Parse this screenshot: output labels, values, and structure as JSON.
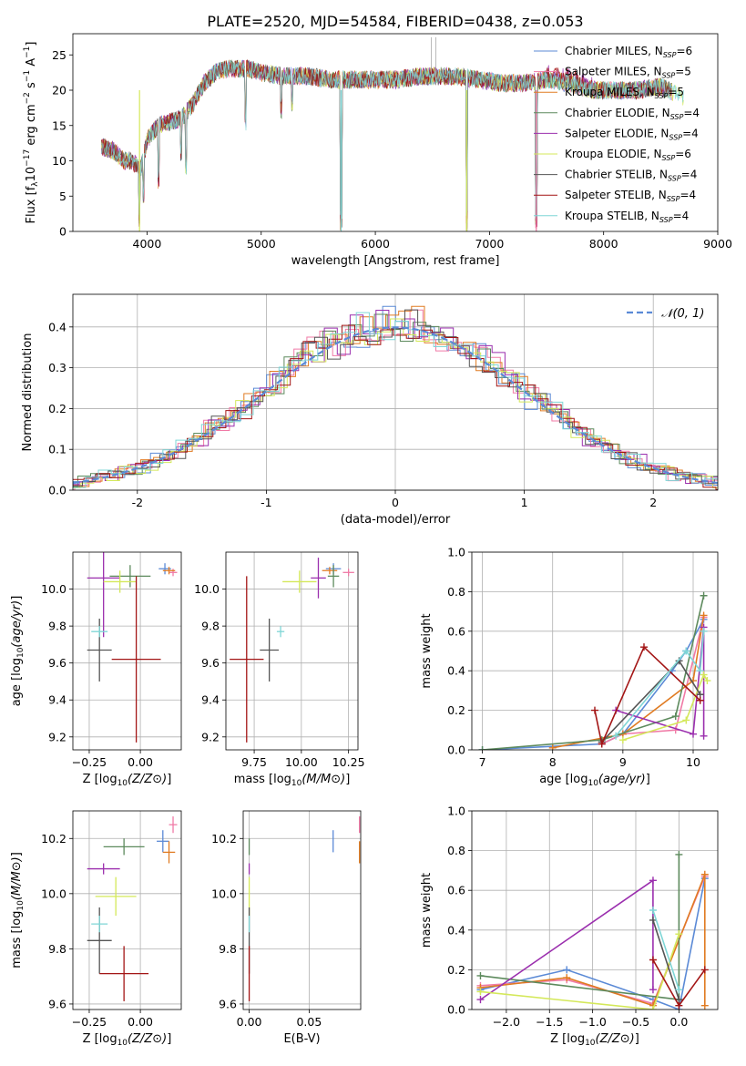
{
  "figure_title": "PLATE=2520, MJD=54584, FIBERID=0438, z=0.053",
  "colors": {
    "Chabrier MILES": "#5b8ad6",
    "Salpeter MILES": "#f07aa6",
    "Kroupa MILES": "#e07b22",
    "Chabrier ELODIE": "#5d8a5d",
    "Salpeter ELODIE": "#9b2fae",
    "Kroupa ELODIE": "#d4e85a",
    "Chabrier STELIB": "#555555",
    "Salpeter STELIB": "#a31515",
    "Kroupa STELIB": "#7fd6d6",
    "gauss": "#5b8ad6"
  },
  "chart_data": [
    {
      "id": "spectrum",
      "type": "line",
      "title": "PLATE=2520, MJD=54584, FIBERID=0438, z=0.053",
      "xlabel": "wavelength [Angstrom, rest frame]",
      "ylabel_parts": [
        "Flux [f",
        "λ",
        "10",
        "−17",
        " erg cm",
        "−2",
        " s",
        "−1",
        " A",
        "−1",
        "]"
      ],
      "xlim": [
        3350,
        9000
      ],
      "ylim": [
        0,
        28
      ],
      "xticks": [
        4000,
        5000,
        6000,
        7000,
        8000,
        9000
      ],
      "yticks": [
        0,
        5,
        10,
        15,
        20,
        25
      ],
      "grid": false,
      "legend_loc": "upper right",
      "legend": [
        {
          "name": "Chabrier MILES",
          "nssp": "6"
        },
        {
          "name": "Salpeter MILES",
          "nssp": "5"
        },
        {
          "name": "Kroupa MILES",
          "nssp": "5"
        },
        {
          "name": "Chabrier ELODIE",
          "nssp": "4"
        },
        {
          "name": "Salpeter ELODIE",
          "nssp": "4"
        },
        {
          "name": "Kroupa ELODIE",
          "nssp": "6"
        },
        {
          "name": "Chabrier STELIB",
          "nssp": "4"
        },
        {
          "name": "Salpeter STELIB",
          "nssp": "4"
        },
        {
          "name": "Kroupa STELIB",
          "nssp": "4"
        }
      ],
      "continuum": [
        [
          3600,
          12
        ],
        [
          3700,
          11.5
        ],
        [
          3800,
          10
        ],
        [
          3850,
          10
        ],
        [
          3950,
          9
        ],
        [
          4000,
          13
        ],
        [
          4100,
          15
        ],
        [
          4200,
          15.5
        ],
        [
          4300,
          16
        ],
        [
          4400,
          18
        ],
        [
          4500,
          21
        ],
        [
          4600,
          22.5
        ],
        [
          4700,
          23
        ],
        [
          4800,
          23
        ],
        [
          4900,
          23
        ],
        [
          5000,
          22.5
        ],
        [
          5200,
          22
        ],
        [
          5400,
          22
        ],
        [
          5600,
          21.5
        ],
        [
          5800,
          21.5
        ],
        [
          6000,
          21.5
        ],
        [
          6200,
          21.5
        ],
        [
          6400,
          22
        ],
        [
          6500,
          22
        ],
        [
          6700,
          22
        ],
        [
          6900,
          21.5
        ],
        [
          7100,
          21
        ],
        [
          7300,
          21
        ],
        [
          7500,
          21.5
        ],
        [
          7700,
          21
        ],
        [
          7900,
          20
        ],
        [
          8100,
          20
        ],
        [
          8300,
          20
        ],
        [
          8500,
          20.5
        ],
        [
          8700,
          19
        ]
      ],
      "lines_down": [
        [
          3934,
          0.5
        ],
        [
          3969,
          4
        ],
        [
          4102,
          6
        ],
        [
          4300,
          10
        ],
        [
          4340,
          8
        ],
        [
          4861,
          14
        ],
        [
          5175,
          16
        ],
        [
          5270,
          17
        ],
        [
          5700,
          0
        ],
        [
          6800,
          0
        ],
        [
          7410,
          0
        ]
      ],
      "lines_up": [
        [
          6490,
          27.5
        ],
        [
          6530,
          27.5
        ]
      ]
    },
    {
      "id": "residuals",
      "type": "bar",
      "xlabel": "(data-model)/error",
      "ylabel": "Normed distribution",
      "xlim": [
        -2.5,
        2.5
      ],
      "ylim": [
        0,
        0.48
      ],
      "xticks": [
        -2,
        -1,
        0,
        1,
        2
      ],
      "yticks": [
        0.0,
        0.1,
        0.2,
        0.3,
        0.4
      ],
      "grid": true,
      "legend_loc": "upper right",
      "legend": [
        {
          "name": "𝒩(0, 1)"
        }
      ],
      "bin_width": 0.1
    },
    {
      "id": "age_vs_Z",
      "type": "scatter",
      "xlabel": "Z [log10(Z/Z⊙)]",
      "ylabel": "age  [log10(age/yr)]",
      "xlim": [
        -0.33,
        0.2
      ],
      "ylim": [
        9.13,
        10.2
      ],
      "xticks": [
        -0.25,
        0.0
      ],
      "xticklabels": [
        "−0.25",
        "0.00"
      ],
      "yticks": [
        9.2,
        9.4,
        9.6,
        9.8,
        10.0
      ],
      "grid": true,
      "points": [
        {
          "model": "Chabrier MILES",
          "x": 0.12,
          "y": 10.11,
          "xerr": 0.03,
          "yerr": 0.03
        },
        {
          "model": "Salpeter MILES",
          "x": 0.16,
          "y": 10.09,
          "xerr": 0.02,
          "yerr": 0.02
        },
        {
          "model": "Kroupa MILES",
          "x": 0.14,
          "y": 10.1,
          "xerr": 0.03,
          "yerr": 0.02
        },
        {
          "model": "Chabrier ELODIE",
          "x": -0.05,
          "y": 10.07,
          "xerr": 0.1,
          "yerr": 0.06
        },
        {
          "model": "Salpeter ELODIE",
          "x": -0.18,
          "y": 10.06,
          "xerr": 0.08,
          "yerr": 0.32
        },
        {
          "model": "Kroupa ELODIE",
          "x": -0.1,
          "y": 10.04,
          "xerr": 0.08,
          "yerr": 0.06
        },
        {
          "model": "Chabrier STELIB",
          "x": -0.2,
          "y": 9.67,
          "xerr": 0.06,
          "yerr": 0.17
        },
        {
          "model": "Salpeter STELIB",
          "x": -0.02,
          "y": 9.62,
          "xerr": 0.12,
          "yerr": 0.45
        },
        {
          "model": "Kroupa STELIB",
          "x": -0.2,
          "y": 9.77,
          "xerr": 0.04,
          "yerr": 0.03
        }
      ]
    },
    {
      "id": "age_vs_mass",
      "type": "scatter",
      "xlabel": "mass [log10(M/M⊙)]",
      "ylabel": "",
      "xlim": [
        9.6,
        10.3
      ],
      "ylim": [
        9.13,
        10.2
      ],
      "xticks": [
        9.75,
        10.0,
        10.25
      ],
      "xticklabels": [
        "9.75",
        "10.00",
        "10.25"
      ],
      "yticks": [
        9.2,
        9.4,
        9.6,
        9.8,
        10.0
      ],
      "grid": true,
      "points": [
        {
          "model": "Chabrier MILES",
          "x": 10.17,
          "y": 10.11,
          "xerr": 0.04,
          "yerr": 0.03
        },
        {
          "model": "Salpeter MILES",
          "x": 10.25,
          "y": 10.09,
          "xerr": 0.03,
          "yerr": 0.02
        },
        {
          "model": "Kroupa MILES",
          "x": 10.15,
          "y": 10.1,
          "xerr": 0.04,
          "yerr": 0.02
        },
        {
          "model": "Chabrier ELODIE",
          "x": 10.17,
          "y": 10.07,
          "xerr": 0.03,
          "yerr": 0.06
        },
        {
          "model": "Salpeter ELODIE",
          "x": 10.09,
          "y": 10.06,
          "xerr": 0.04,
          "yerr": 0.11
        },
        {
          "model": "Kroupa ELODIE",
          "x": 9.99,
          "y": 10.04,
          "xerr": 0.09,
          "yerr": 0.06
        },
        {
          "model": "Chabrier STELIB",
          "x": 9.83,
          "y": 9.67,
          "xerr": 0.05,
          "yerr": 0.17
        },
        {
          "model": "Salpeter STELIB",
          "x": 9.71,
          "y": 9.62,
          "xerr": 0.09,
          "yerr": 0.45
        },
        {
          "model": "Kroupa STELIB",
          "x": 9.89,
          "y": 9.77,
          "xerr": 0.02,
          "yerr": 0.03
        }
      ]
    },
    {
      "id": "weight_vs_age",
      "type": "line",
      "xlabel": "age  [log10(age/yr)]",
      "ylabel": "mass weight",
      "xlim": [
        6.85,
        10.35
      ],
      "ylim": [
        0,
        1.0
      ],
      "xticks": [
        7,
        8,
        9,
        10
      ],
      "yticks": [
        0.0,
        0.2,
        0.4,
        0.6,
        0.8,
        1.0
      ],
      "grid": true,
      "series": [
        {
          "model": "Chabrier MILES",
          "points": [
            [
              7.0,
              0.0
            ],
            [
              8.7,
              0.03
            ],
            [
              9.0,
              0.08
            ],
            [
              9.7,
              0.4
            ],
            [
              9.9,
              0.5
            ],
            [
              10.15,
              0.66
            ]
          ]
        },
        {
          "model": "Salpeter MILES",
          "points": [
            [
              8.7,
              0.03
            ],
            [
              9.0,
              0.08
            ],
            [
              9.75,
              0.1
            ],
            [
              10.15,
              0.67
            ]
          ]
        },
        {
          "model": "Kroupa MILES",
          "points": [
            [
              8.0,
              0.01
            ],
            [
              9.0,
              0.08
            ],
            [
              10.0,
              0.35
            ],
            [
              10.15,
              0.68
            ]
          ]
        },
        {
          "model": "Chabrier ELODIE",
          "points": [
            [
              7.0,
              0.0
            ],
            [
              8.7,
              0.05
            ],
            [
              9.75,
              0.17
            ],
            [
              10.15,
              0.78
            ]
          ]
        },
        {
          "model": "Salpeter ELODIE",
          "points": [
            [
              8.9,
              0.2
            ],
            [
              10.0,
              0.08
            ],
            [
              10.15,
              0.62
            ],
            [
              10.15,
              0.07
            ]
          ]
        },
        {
          "model": "Kroupa ELODIE",
          "points": [
            [
              9.0,
              0.05
            ],
            [
              9.9,
              0.15
            ],
            [
              10.15,
              0.38
            ],
            [
              10.2,
              0.35
            ]
          ]
        },
        {
          "model": "Chabrier STELIB",
          "points": [
            [
              8.7,
              0.04
            ],
            [
              9.8,
              0.45
            ],
            [
              10.1,
              0.28
            ]
          ]
        },
        {
          "model": "Salpeter STELIB",
          "points": [
            [
              8.6,
              0.2
            ],
            [
              8.7,
              0.03
            ],
            [
              9.3,
              0.52
            ],
            [
              10.1,
              0.25
            ]
          ]
        },
        {
          "model": "Kroupa STELIB",
          "points": [
            [
              8.9,
              0.07
            ],
            [
              9.9,
              0.5
            ],
            [
              10.1,
              0.4
            ],
            [
              10.15,
              0.6
            ]
          ]
        }
      ]
    },
    {
      "id": "mass_vs_Z",
      "type": "scatter",
      "xlabel": "Z [log10(Z/Z⊙)]",
      "ylabel": "mass [log10(M/M⊙)]",
      "xlim": [
        -0.33,
        0.2
      ],
      "ylim": [
        9.58,
        10.3
      ],
      "xticks": [
        -0.25,
        0.0
      ],
      "xticklabels": [
        "−0.25",
        "0.00"
      ],
      "yticks": [
        9.6,
        9.8,
        10.0,
        10.2
      ],
      "grid": true,
      "points": [
        {
          "model": "Chabrier MILES",
          "x": 0.11,
          "y": 10.19,
          "xerr": 0.03,
          "yerr": 0.04
        },
        {
          "model": "Salpeter MILES",
          "x": 0.16,
          "y": 10.25,
          "xerr": 0.02,
          "yerr": 0.03
        },
        {
          "model": "Kroupa MILES",
          "x": 0.14,
          "y": 10.15,
          "xerr": 0.03,
          "yerr": 0.04
        },
        {
          "model": "Chabrier ELODIE",
          "x": -0.08,
          "y": 10.17,
          "xerr": 0.1,
          "yerr": 0.03
        },
        {
          "model": "Salpeter ELODIE",
          "x": -0.18,
          "y": 10.09,
          "xerr": 0.08,
          "yerr": 0.02
        },
        {
          "model": "Kroupa ELODIE",
          "x": -0.12,
          "y": 9.99,
          "xerr": 0.1,
          "yerr": 0.07
        },
        {
          "model": "Chabrier STELIB",
          "x": -0.2,
          "y": 9.83,
          "xerr": 0.06,
          "yerr": 0.12
        },
        {
          "model": "Salpeter STELIB",
          "x": -0.08,
          "y": 9.71,
          "xerr": 0.12,
          "yerr": 0.1
        },
        {
          "model": "Kroupa STELIB",
          "x": -0.2,
          "y": 9.89,
          "xerr": 0.04,
          "yerr": 0.03
        }
      ]
    },
    {
      "id": "mass_vs_ebv",
      "type": "scatter",
      "xlabel": "E(B-V)",
      "ylabel": "",
      "xlim": [
        -0.005,
        0.093
      ],
      "ylim": [
        9.58,
        10.3
      ],
      "xticks": [
        0.0,
        0.05
      ],
      "xticklabels": [
        "0.00",
        "0.05"
      ],
      "yticks": [
        9.6,
        9.8,
        10.0,
        10.2
      ],
      "grid": true,
      "points": [
        {
          "model": "Chabrier MILES",
          "x": 0.07,
          "y": 10.19,
          "xerr": 0,
          "yerr": 0.04
        },
        {
          "model": "Salpeter MILES",
          "x": 0.092,
          "y": 10.25,
          "xerr": 0,
          "yerr": 0.03
        },
        {
          "model": "Kroupa MILES",
          "x": 0.092,
          "y": 10.15,
          "xerr": 0,
          "yerr": 0.04
        },
        {
          "model": "Chabrier ELODIE",
          "x": 0.0,
          "y": 10.17,
          "xerr": 0,
          "yerr": 0.03
        },
        {
          "model": "Salpeter ELODIE",
          "x": 0.0,
          "y": 10.09,
          "xerr": 0,
          "yerr": 0.02
        },
        {
          "model": "Kroupa ELODIE",
          "x": 0.0,
          "y": 9.99,
          "xerr": 0,
          "yerr": 0.07
        },
        {
          "model": "Chabrier STELIB",
          "x": 0.0,
          "y": 9.83,
          "xerr": 0,
          "yerr": 0.12
        },
        {
          "model": "Salpeter STELIB",
          "x": 0.0,
          "y": 9.71,
          "xerr": 0,
          "yerr": 0.1
        },
        {
          "model": "Kroupa STELIB",
          "x": 0.0,
          "y": 9.89,
          "xerr": 0,
          "yerr": 0.03
        }
      ]
    },
    {
      "id": "weight_vs_Z",
      "type": "line",
      "xlabel": "Z [log10(Z/Z⊙)]",
      "ylabel": "mass weight",
      "xlim": [
        -2.4,
        0.45
      ],
      "ylim": [
        0,
        1.0
      ],
      "xticks": [
        -2.0,
        -1.5,
        -1.0,
        -0.5,
        0.0
      ],
      "xticklabels": [
        "−2.0",
        "−1.5",
        "−1.0",
        "−0.5",
        "0.0"
      ],
      "yticks": [
        0.0,
        0.2,
        0.4,
        0.6,
        0.8,
        1.0
      ],
      "grid": true,
      "series": [
        {
          "model": "Chabrier MILES",
          "points": [
            [
              -2.3,
              0.1
            ],
            [
              -1.3,
              0.2
            ],
            [
              -0.3,
              0.05
            ],
            [
              0.0,
              0.0
            ],
            [
              0.3,
              0.66
            ]
          ]
        },
        {
          "model": "Salpeter MILES",
          "points": [
            [
              -2.3,
              0.12
            ],
            [
              -1.3,
              0.15
            ],
            [
              -0.3,
              0.03
            ],
            [
              0.3,
              0.67
            ]
          ]
        },
        {
          "model": "Kroupa MILES",
          "points": [
            [
              -2.3,
              0.11
            ],
            [
              -1.3,
              0.16
            ],
            [
              -0.3,
              0.02
            ],
            [
              0.3,
              0.68
            ],
            [
              0.3,
              0.02
            ]
          ]
        },
        {
          "model": "Chabrier ELODIE",
          "points": [
            [
              -2.3,
              0.17
            ],
            [
              0.0,
              0.05
            ],
            [
              0.0,
              0.78
            ]
          ]
        },
        {
          "model": "Salpeter ELODIE",
          "points": [
            [
              -2.3,
              0.05
            ],
            [
              -0.3,
              0.65
            ],
            [
              -0.3,
              0.1
            ]
          ]
        },
        {
          "model": "Kroupa ELODIE",
          "points": [
            [
              -2.3,
              0.09
            ],
            [
              -0.3,
              0.0
            ],
            [
              0.0,
              0.38
            ]
          ]
        },
        {
          "model": "Chabrier STELIB",
          "points": [
            [
              -0.3,
              0.45
            ],
            [
              0.0,
              0.05
            ]
          ]
        },
        {
          "model": "Salpeter STELIB",
          "points": [
            [
              -0.3,
              0.25
            ],
            [
              0.0,
              0.02
            ],
            [
              0.3,
              0.2
            ]
          ]
        },
        {
          "model": "Kroupa STELIB",
          "points": [
            [
              -0.3,
              0.5
            ],
            [
              0.0,
              0.1
            ]
          ]
        }
      ]
    }
  ]
}
